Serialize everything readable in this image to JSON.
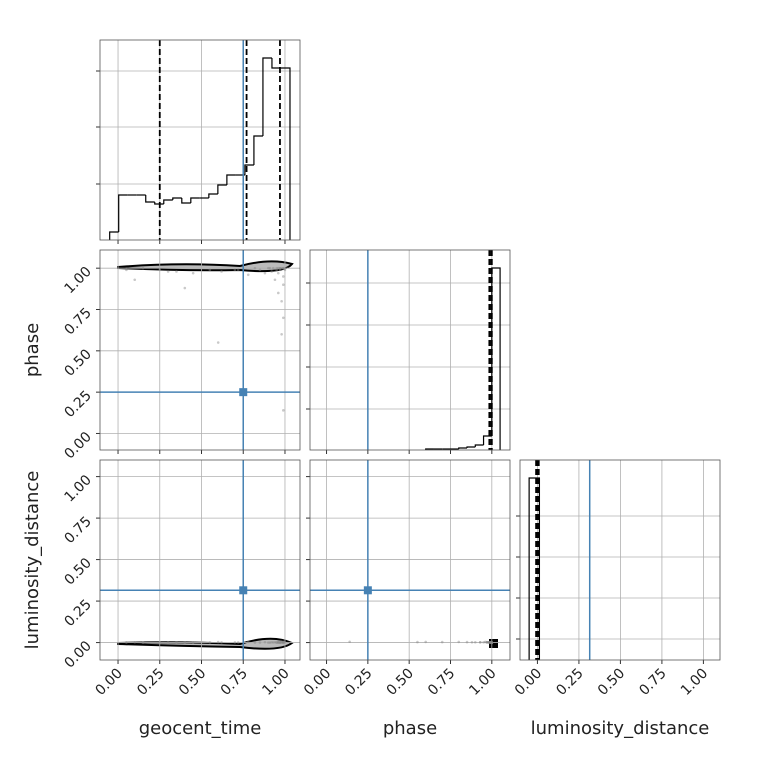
{
  "chart_data": {
    "type": "corner",
    "parameters": [
      "geocent_time",
      "phase",
      "luminosity_distance"
    ],
    "limits": [
      [
        -0.108,
        1.09
      ],
      [
        -0.1,
        1.11
      ],
      [
        -0.105,
        1.1
      ]
    ],
    "ticks": [
      {
        "value": 0,
        "label": "0.00"
      },
      {
        "value": 0.25,
        "label": "0.25"
      },
      {
        "value": 0.5,
        "label": "0.50"
      },
      {
        "value": 0.75,
        "label": "0.75"
      },
      {
        "value": 1,
        "label": "1.00"
      }
    ],
    "truths": [
      0.75,
      0.25,
      0.315
    ],
    "truth_color": "#4682b4",
    "grid": true,
    "histograms": [
      {
        "bins": [
          -0.05,
          0.004,
          0.058,
          0.112,
          0.166,
          0.22,
          0.274,
          0.328,
          0.382,
          0.436,
          0.49,
          0.544,
          0.598,
          0.652,
          0.706,
          0.76,
          0.814,
          0.868,
          0.922,
          0.976,
          1.03
        ],
        "counts": [
          8,
          45,
          45,
          45,
          38,
          36,
          40,
          42,
          37,
          42,
          42,
          46,
          55,
          65,
          65,
          75,
          104,
          182,
          172,
          172
        ],
        "ylim": [
          0,
          200
        ],
        "yticks": [
          56,
          113,
          169
        ],
        "quantiles": [
          0.25,
          0.77,
          0.97
        ]
      },
      {
        "bins": [
          0.6,
          0.65,
          0.7,
          0.75,
          0.8,
          0.85,
          0.9,
          0.95,
          1.0,
          1.05
        ],
        "counts": [
          1,
          1,
          1,
          1,
          2,
          3,
          5,
          14,
          182
        ],
        "ylim": [
          0,
          200
        ],
        "yticks": [
          41,
          83,
          125,
          167
        ],
        "quantiles": [
          0.985,
          0.995,
          1.0
        ]
      },
      {
        "bins": [
          -0.05,
          0.012
        ],
        "counts": [
          182
        ],
        "ylim": [
          0,
          200
        ],
        "yticks": [
          21,
          62,
          103,
          144
        ],
        "quantiles": [
          -0.008,
          0.0,
          0.008
        ]
      }
    ],
    "samples": [
      [
        0.98,
        0.95,
        0.99,
        0.92,
        0.97,
        1.0,
        0.88,
        0.96,
        0.99,
        0.93,
        0.85,
        0.78,
        0.97,
        0.99,
        0.7,
        0.91,
        0.96,
        0.62,
        0.99,
        0.94,
        0.55,
        0.98,
        0.82,
        0.45,
        0.97,
        0.99,
        0.35,
        0.9,
        0.25,
        0.98,
        0.15,
        0.96,
        0.05,
        0.99,
        0.72,
        0.4,
        0.95,
        0.6,
        0.3,
        0.1
      ],
      [
        1.0,
        0.99,
        1.0,
        0.98,
        1.0,
        0.99,
        0.97,
        1.0,
        0.95,
        1.0,
        0.99,
        0.96,
        1.0,
        0.9,
        0.99,
        1.0,
        0.85,
        0.98,
        1.0,
        0.93,
        0.99,
        0.8,
        1.0,
        0.97,
        0.99,
        0.7,
        0.98,
        1.0,
        0.99,
        0.6,
        1.0,
        0.97,
        0.99,
        0.14,
        0.99,
        0.88,
        1.0,
        0.55,
        0.98,
        0.93
      ],
      [
        0.0,
        0.001,
        0.0,
        0.002,
        0.0,
        0.001,
        0.003,
        0.0,
        0.002,
        0.001,
        0.0,
        0.004,
        0.0,
        0.002,
        0.001,
        0.0,
        0.003,
        0.001,
        0.0,
        0.002,
        0.001,
        0.004,
        0.0,
        0.002,
        0.001,
        0.003,
        0.002,
        0.0,
        0.001,
        0.004,
        0.0,
        0.001,
        0.002,
        0.005,
        0.001,
        0.002,
        0.0,
        0.003,
        0.001,
        0.002
      ]
    ]
  }
}
